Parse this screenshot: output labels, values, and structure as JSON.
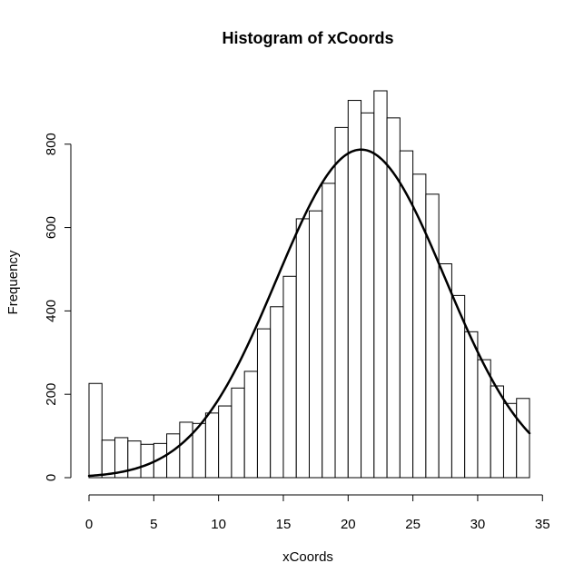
{
  "chart_data": {
    "type": "bar",
    "title": "Histogram of xCoords",
    "xlabel": "xCoords",
    "ylabel": "Frequency",
    "xlim": [
      0,
      35
    ],
    "ylim": [
      0,
      930
    ],
    "x_ticks": [
      0,
      5,
      10,
      15,
      20,
      25,
      30,
      35
    ],
    "y_ticks": [
      0,
      200,
      400,
      600,
      800
    ],
    "bin_width": 1,
    "bins": [
      {
        "x0": 0,
        "x1": 1,
        "count": 226
      },
      {
        "x0": 1,
        "x1": 2,
        "count": 90
      },
      {
        "x0": 2,
        "x1": 3,
        "count": 96
      },
      {
        "x0": 3,
        "x1": 4,
        "count": 88
      },
      {
        "x0": 4,
        "x1": 5,
        "count": 80
      },
      {
        "x0": 5,
        "x1": 6,
        "count": 82
      },
      {
        "x0": 6,
        "x1": 7,
        "count": 105
      },
      {
        "x0": 7,
        "x1": 8,
        "count": 133
      },
      {
        "x0": 8,
        "x1": 9,
        "count": 130
      },
      {
        "x0": 9,
        "x1": 10,
        "count": 155
      },
      {
        "x0": 10,
        "x1": 11,
        "count": 172
      },
      {
        "x0": 11,
        "x1": 12,
        "count": 215
      },
      {
        "x0": 12,
        "x1": 13,
        "count": 255
      },
      {
        "x0": 13,
        "x1": 14,
        "count": 357
      },
      {
        "x0": 14,
        "x1": 15,
        "count": 410
      },
      {
        "x0": 15,
        "x1": 16,
        "count": 483
      },
      {
        "x0": 16,
        "x1": 17,
        "count": 621
      },
      {
        "x0": 17,
        "x1": 18,
        "count": 640
      },
      {
        "x0": 18,
        "x1": 19,
        "count": 706
      },
      {
        "x0": 19,
        "x1": 20,
        "count": 840
      },
      {
        "x0": 20,
        "x1": 21,
        "count": 905
      },
      {
        "x0": 21,
        "x1": 22,
        "count": 875
      },
      {
        "x0": 22,
        "x1": 23,
        "count": 928
      },
      {
        "x0": 23,
        "x1": 24,
        "count": 863
      },
      {
        "x0": 24,
        "x1": 25,
        "count": 784
      },
      {
        "x0": 25,
        "x1": 26,
        "count": 728
      },
      {
        "x0": 26,
        "x1": 27,
        "count": 680
      },
      {
        "x0": 27,
        "x1": 28,
        "count": 513
      },
      {
        "x0": 28,
        "x1": 29,
        "count": 437
      },
      {
        "x0": 29,
        "x1": 30,
        "count": 350
      },
      {
        "x0": 30,
        "x1": 31,
        "count": 283
      },
      {
        "x0": 31,
        "x1": 32,
        "count": 220
      },
      {
        "x0": 32,
        "x1": 33,
        "count": 178
      },
      {
        "x0": 33,
        "x1": 34,
        "count": 190
      }
    ],
    "curve": {
      "type": "normal-density-fit",
      "mean": 21,
      "sd": 6.5,
      "peak": 787,
      "x_range": [
        0,
        34
      ]
    },
    "grid": false,
    "legend": "none",
    "colors": {
      "bar_fill": "#ffffff",
      "bar_stroke": "#000000",
      "curve": "#000000",
      "axis": "#000000"
    }
  }
}
